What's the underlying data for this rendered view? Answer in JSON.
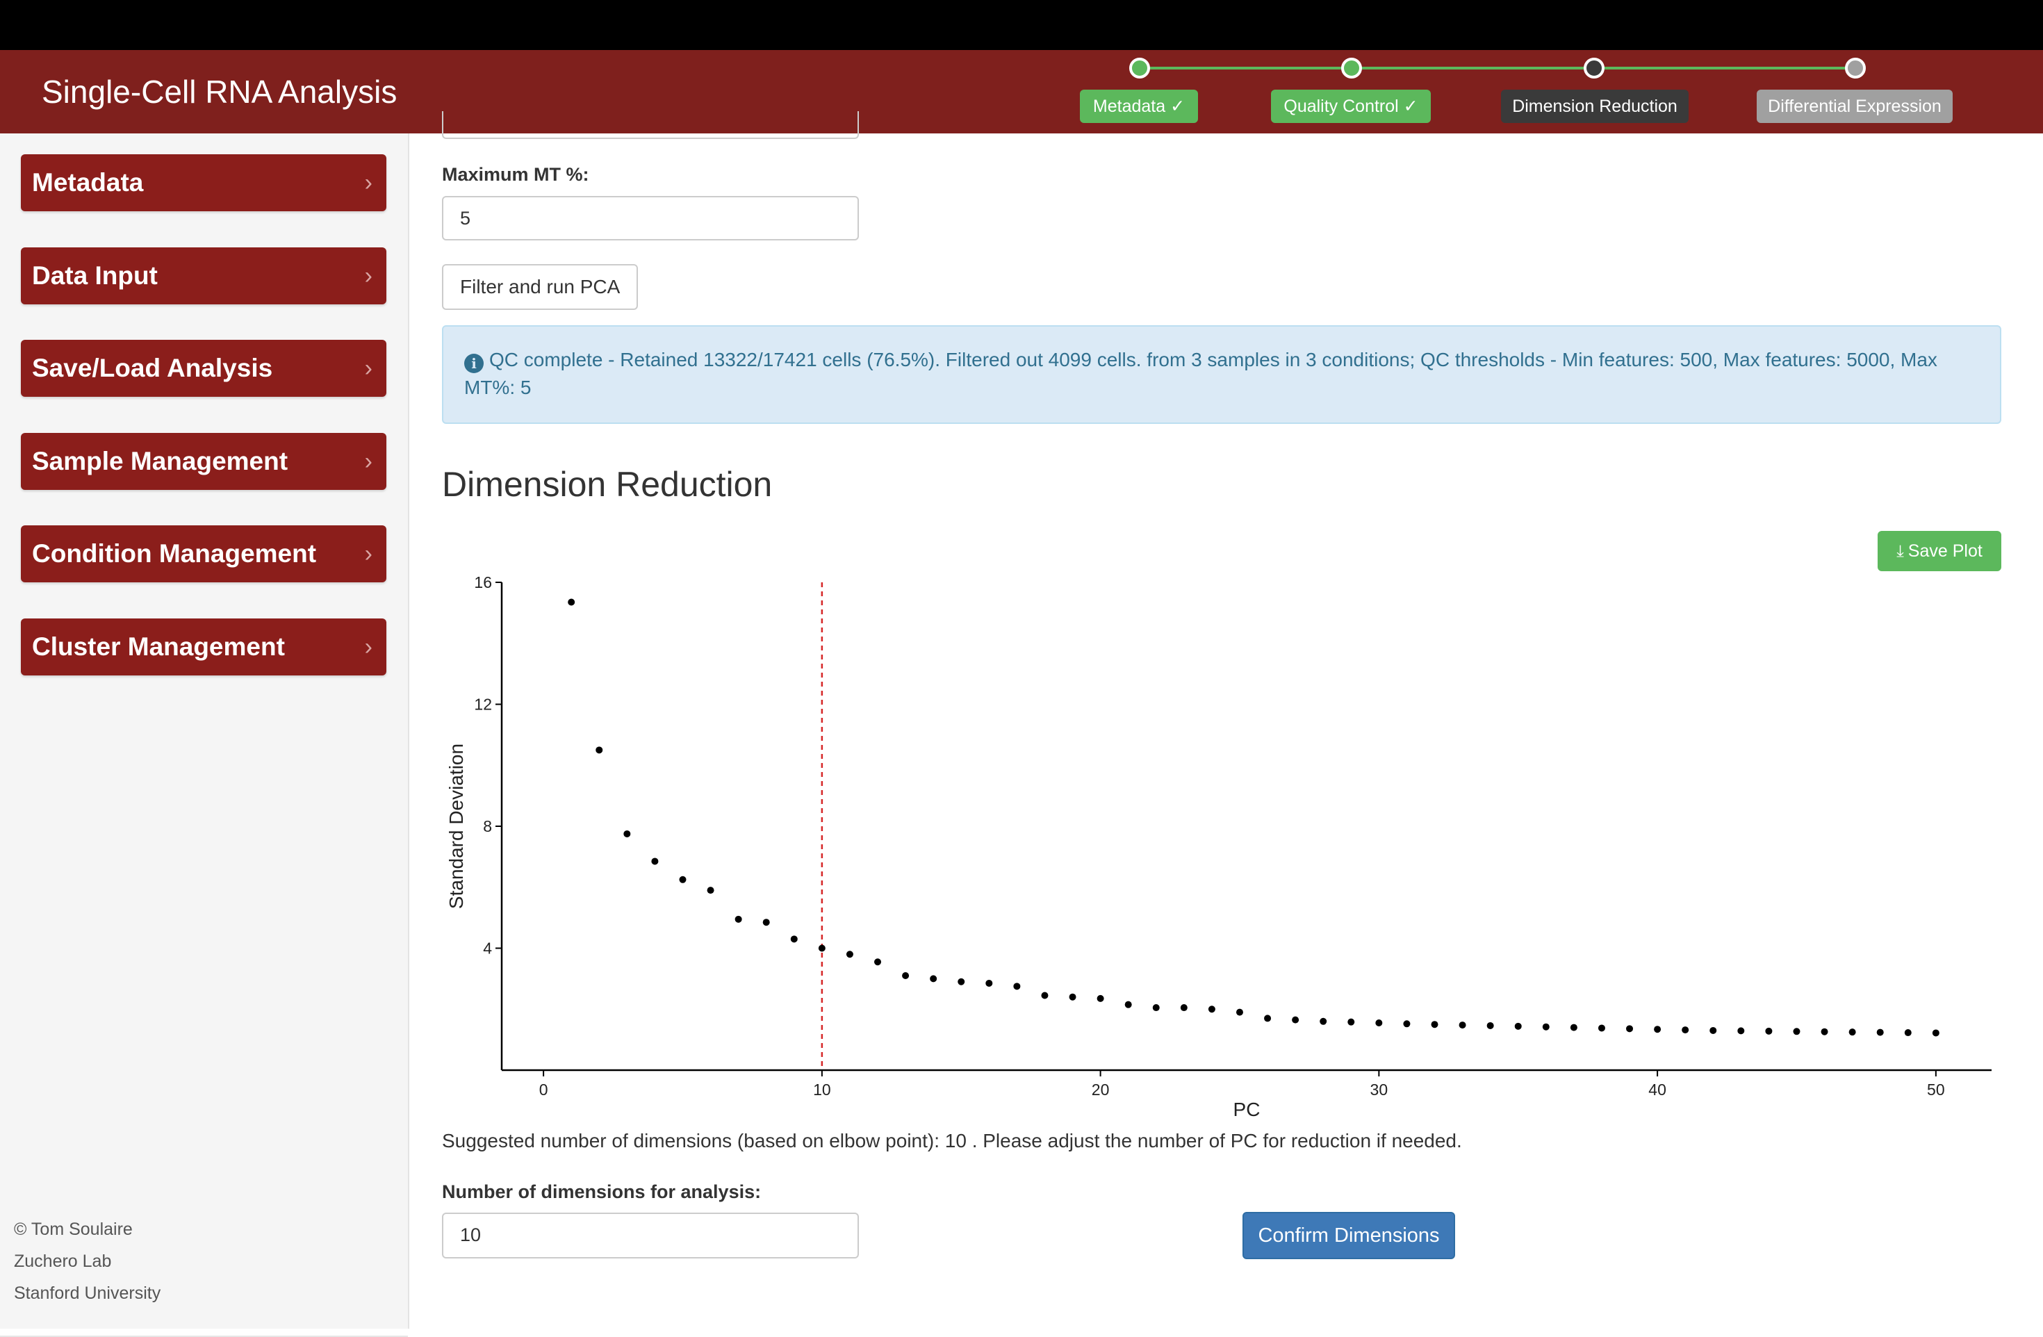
{
  "app": {
    "title": "Single-Cell RNA Analysis"
  },
  "stepper": [
    {
      "label": "Metadata ✓",
      "state": "complete",
      "color": "#5cb85c"
    },
    {
      "label": "Quality Control ✓",
      "state": "complete",
      "color": "#5cb85c"
    },
    {
      "label": "Dimension Reduction",
      "state": "active",
      "color": "#3a3a3a"
    },
    {
      "label": "Differential Expression",
      "state": "pending",
      "color": "#a0a0a0"
    }
  ],
  "sidebar": {
    "items": [
      {
        "label": "Metadata",
        "icon": "chevron-right-icon"
      },
      {
        "label": "Data Input",
        "icon": "chevron-right-icon"
      },
      {
        "label": "Save/Load Analysis",
        "icon": "chevron-right-icon"
      },
      {
        "label": "Sample Management",
        "icon": "chevron-right-icon"
      },
      {
        "label": "Condition Management",
        "icon": "chevron-right-icon"
      },
      {
        "label": "Cluster Management",
        "icon": "chevron-right-icon"
      }
    ],
    "footer": [
      "© Tom Soulaire",
      "Zuchero Lab",
      "Stanford University"
    ]
  },
  "qc": {
    "max_mt_label": "Maximum MT %:",
    "max_mt_value": "5",
    "filter_button": "Filter and run PCA",
    "info_message": "QC complete - Retained 13322/17421 cells (76.5%). Filtered out 4099 cells. from 3 samples in 3 conditions; QC thresholds - Min features: 500, Max features: 5000, Max MT%: 5"
  },
  "dimred": {
    "title": "Dimension Reduction",
    "save_plot_label": "Save Plot",
    "suggestion": "Suggested number of dimensions (based on elbow point): 10 . Please adjust the number of PC for reduction if needed.",
    "num_dims_label": "Number of dimensions for analysis:",
    "num_dims_value": "10",
    "confirm_label": "Confirm Dimensions"
  },
  "colors": {
    "header": "#7f201d",
    "sidebar_item": "#8b1e1b",
    "success": "#5cb85c",
    "primary": "#3e79b7",
    "elbow_line": "#d62728"
  },
  "chart_data": {
    "type": "scatter",
    "xlabel": "PC",
    "ylabel": "Standard Deviation",
    "xlim": [
      -1.5,
      52
    ],
    "ylim": [
      0,
      16
    ],
    "xticks": [
      0,
      10,
      20,
      30,
      40,
      50
    ],
    "yticks": [
      4,
      8,
      12,
      16
    ],
    "vline": 10,
    "series": [
      {
        "x": [
          1,
          2,
          3,
          4,
          5,
          6,
          7,
          8,
          9,
          10,
          11,
          12,
          13,
          14,
          15,
          16,
          17,
          18,
          19,
          20,
          21,
          22,
          23,
          24,
          25,
          26,
          27,
          28,
          29,
          30,
          31,
          32,
          33,
          34,
          35,
          36,
          37,
          38,
          39,
          40,
          41,
          42,
          43,
          44,
          45,
          46,
          47,
          48,
          49,
          50
        ],
        "values": [
          15.35,
          10.5,
          7.75,
          6.85,
          6.25,
          5.9,
          4.95,
          4.85,
          4.3,
          4.0,
          3.8,
          3.55,
          3.1,
          3.0,
          2.9,
          2.85,
          2.75,
          2.45,
          2.4,
          2.35,
          2.15,
          2.05,
          2.05,
          2.0,
          1.9,
          1.7,
          1.65,
          1.6,
          1.58,
          1.55,
          1.52,
          1.5,
          1.48,
          1.46,
          1.44,
          1.42,
          1.4,
          1.38,
          1.36,
          1.34,
          1.32,
          1.3,
          1.29,
          1.28,
          1.27,
          1.26,
          1.25,
          1.24,
          1.23,
          1.22
        ]
      }
    ]
  }
}
